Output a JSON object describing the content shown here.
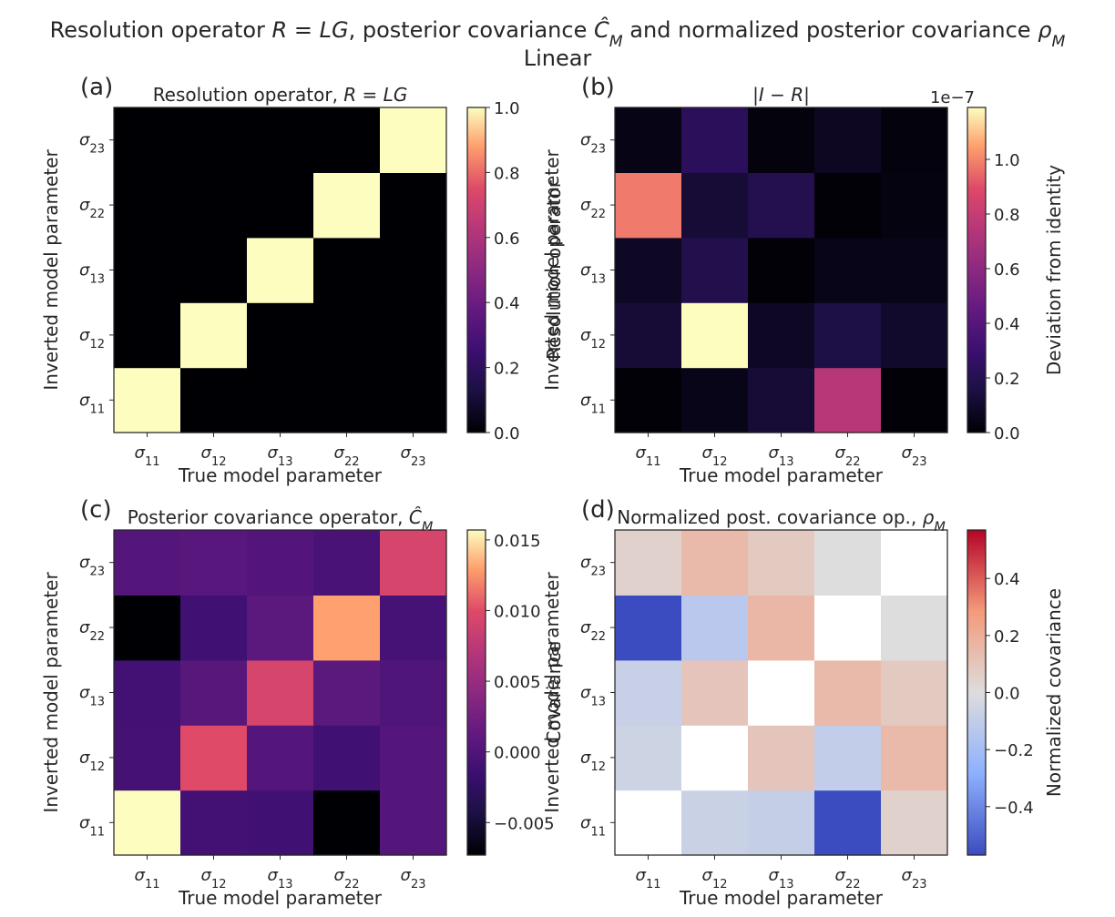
{
  "suptitle": {
    "line1": "Resolution operator R = LG, posterior covariance Ĉ_M and normalized posterior covariance ρ_M",
    "line1_parts": [
      {
        "t": "Resolution operator ",
        "i": false
      },
      {
        "t": "R",
        "i": true
      },
      {
        "t": " = ",
        "i": false
      },
      {
        "t": "LG",
        "i": true
      },
      {
        "t": ", posterior covariance ",
        "i": false
      },
      {
        "t": "Ĉ",
        "i": true
      },
      {
        "t": "M",
        "i": true,
        "sub": true
      },
      {
        "t": " and normalized posterior covariance ",
        "i": false
      },
      {
        "t": "ρ",
        "i": true
      },
      {
        "t": "M",
        "i": true,
        "sub": true
      }
    ],
    "line2": "Linear"
  },
  "param_labels": [
    "σ11",
    "σ12",
    "σ13",
    "σ22",
    "σ23"
  ],
  "param_label_parts": [
    [
      "σ",
      "11"
    ],
    [
      "σ",
      "12"
    ],
    [
      "σ",
      "13"
    ],
    [
      "σ",
      "22"
    ],
    [
      "σ",
      "23"
    ]
  ],
  "chart_data": [
    {
      "type": "heatmap",
      "panel_letter": "(a)",
      "title": "Resolution operator, R = LG",
      "title_parts": [
        {
          "t": "Resolution operator, ",
          "i": false
        },
        {
          "t": "R",
          "i": true
        },
        {
          "t": " = ",
          "i": false
        },
        {
          "t": "LG",
          "i": true
        }
      ],
      "xlabel": "True model parameter",
      "ylabel": "Inverted model parameter",
      "colormap": "magma",
      "vmin": 0.0,
      "vmax": 1.0,
      "colorbar_label": "Resolution operator",
      "colorbar_ticks": [
        0.0,
        0.2,
        0.4,
        0.6,
        0.8,
        1.0
      ],
      "colorbar_tick_labels": [
        "0.0",
        "0.2",
        "0.4",
        "0.6",
        "0.8",
        "1.0"
      ],
      "colorbar_offset": "",
      "rows_bottom_to_top": [
        "σ11",
        "σ12",
        "σ13",
        "σ22",
        "σ23"
      ],
      "values": [
        [
          1,
          0,
          0,
          0,
          0
        ],
        [
          0,
          1,
          0,
          0,
          0
        ],
        [
          0,
          0,
          1,
          0,
          0
        ],
        [
          0,
          0,
          0,
          1,
          0
        ],
        [
          0,
          0,
          0,
          0,
          1
        ]
      ]
    },
    {
      "type": "heatmap",
      "panel_letter": "(b)",
      "title": "|I − R|",
      "title_parts": [
        {
          "t": "|",
          "i": false
        },
        {
          "t": "I",
          "i": true
        },
        {
          "t": " − ",
          "i": false
        },
        {
          "t": "R",
          "i": true
        },
        {
          "t": "|",
          "i": false
        }
      ],
      "xlabel": "True model parameter",
      "ylabel": "Inverted model parameter",
      "colormap": "magma",
      "vmin": 0.0,
      "vmax": 1.19e-07,
      "colorbar_label": "Deviation from identity",
      "colorbar_ticks": [
        0.0,
        2e-08,
        4e-08,
        6e-08,
        8e-08,
        1e-07
      ],
      "colorbar_tick_labels": [
        "0.0",
        "0.2",
        "0.4",
        "0.6",
        "0.8",
        "1.0"
      ],
      "colorbar_offset": "1e−7",
      "rows_bottom_to_top": [
        "σ11",
        "σ12",
        "σ13",
        "σ22",
        "σ23"
      ],
      "values": [
        [
          1e-09,
          5e-09,
          1.2e-08,
          7.5e-08,
          1e-09
        ],
        [
          1.2e-08,
          1.19e-07,
          8e-09,
          1.6e-08,
          1e-08
        ],
        [
          8e-09,
          1.8e-08,
          1e-09,
          5e-09,
          5e-09
        ],
        [
          9.8e-08,
          1.2e-08,
          1.9e-08,
          1e-09,
          3e-09
        ],
        [
          4e-09,
          2.3e-08,
          2e-09,
          7e-09,
          2e-09
        ]
      ]
    },
    {
      "type": "heatmap",
      "panel_letter": "(c)",
      "title": "Posterior covariance operator, Ĉ_M",
      "title_parts": [
        {
          "t": "Posterior covariance operator, ",
          "i": false
        },
        {
          "t": "Ĉ",
          "i": true
        },
        {
          "t": "M",
          "i": true,
          "sub": true
        }
      ],
      "xlabel": "True model parameter",
      "ylabel": "Inverted model parameter",
      "colormap": "magma",
      "vmin": -0.0073,
      "vmax": 0.0157,
      "colorbar_label": "Covariance",
      "colorbar_ticks": [
        -0.005,
        0.0,
        0.005,
        0.01,
        0.015
      ],
      "colorbar_tick_labels": [
        "−0.005",
        "0.000",
        "0.005",
        "0.010",
        "0.015"
      ],
      "colorbar_offset": "",
      "rows_bottom_to_top": [
        "σ11",
        "σ12",
        "σ13",
        "σ22",
        "σ23"
      ],
      "values": [
        [
          0.0157,
          -0.001,
          -0.0012,
          -0.0073,
          0.0003
        ],
        [
          -0.0008,
          0.01,
          0.0003,
          -0.0012,
          0.0003
        ],
        [
          -0.001,
          0.0005,
          0.0093,
          0.0008,
          0.0
        ],
        [
          -0.0073,
          -0.0012,
          0.0008,
          0.013,
          -0.0007
        ],
        [
          0.0003,
          0.0006,
          0.0002,
          -0.0005,
          0.0093
        ]
      ]
    },
    {
      "type": "heatmap",
      "panel_letter": "(d)",
      "title": "Normalized post. covariance op., ρ_M",
      "title_parts": [
        {
          "t": "Normalized post. covariance op., ",
          "i": false
        },
        {
          "t": "ρ",
          "i": true
        },
        {
          "t": "M",
          "i": true,
          "sub": true
        }
      ],
      "xlabel": "True model parameter",
      "ylabel": "Inverted model parameter",
      "colormap": "coolwarm",
      "vmin": -0.57,
      "vmax": 0.57,
      "colorbar_label": "Normalized covariance",
      "colorbar_ticks": [
        -0.4,
        -0.2,
        0.0,
        0.2,
        0.4
      ],
      "colorbar_tick_labels": [
        "−0.4",
        "−0.2",
        "0.0",
        "0.2",
        "0.4"
      ],
      "colorbar_offset": "",
      "rows_bottom_to_top": [
        "σ11",
        "σ12",
        "σ13",
        "σ22",
        "σ23"
      ],
      "values": [
        [
          null,
          -0.07,
          -0.09,
          -0.57,
          0.05
        ],
        [
          -0.06,
          null,
          0.1,
          -0.1,
          0.15
        ],
        [
          -0.08,
          0.1,
          null,
          0.15,
          0.08
        ],
        [
          -0.57,
          -0.13,
          0.16,
          null,
          0.0
        ],
        [
          0.05,
          0.15,
          0.08,
          0.0,
          null
        ]
      ]
    }
  ]
}
